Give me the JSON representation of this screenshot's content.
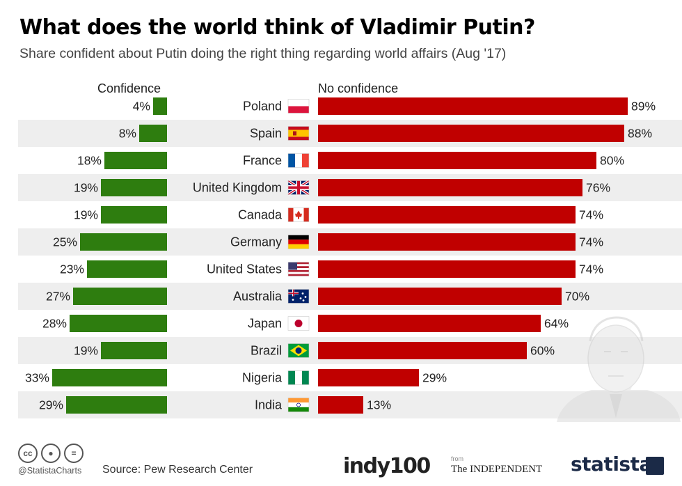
{
  "header": {
    "title": "What does the world think of Vladimir Putin?",
    "subtitle": "Share confident about Putin doing the right thing regarding world affairs (Aug '17)"
  },
  "colors": {
    "confidence": "#2e7d0f",
    "no_confidence": "#c00000",
    "stripe": "#eeeeee"
  },
  "chart_data": {
    "type": "bar",
    "title": "What does the world think of Vladimir Putin?",
    "subtitle": "Share confident about Putin doing the right thing regarding world affairs (Aug '17)",
    "categories": [
      "Poland",
      "Spain",
      "France",
      "United Kingdom",
      "Canada",
      "Germany",
      "United States",
      "Australia",
      "Japan",
      "Brazil",
      "Nigeria",
      "India"
    ],
    "series": [
      {
        "name": "Confidence",
        "values": [
          4,
          8,
          18,
          19,
          19,
          25,
          23,
          27,
          28,
          19,
          33,
          29
        ]
      },
      {
        "name": "No confidence",
        "values": [
          89,
          88,
          80,
          76,
          74,
          74,
          74,
          70,
          64,
          60,
          29,
          13
        ]
      }
    ],
    "value_suffix": "%",
    "flags": [
      "poland-flag-icon",
      "spain-flag-icon",
      "france-flag-icon",
      "uk-flag-icon",
      "canada-flag-icon",
      "germany-flag-icon",
      "usa-flag-icon",
      "australia-flag-icon",
      "japan-flag-icon",
      "brazil-flag-icon",
      "nigeria-flag-icon",
      "india-flag-icon"
    ],
    "grid": false,
    "legend": "top",
    "decoration": "putin-portrait-icon"
  },
  "footer": {
    "cc_icons": [
      "cc",
      "by",
      "nd"
    ],
    "handle": "@StatistaCharts",
    "source": "Source: Pew Research Center",
    "logo_indy_a": "indy",
    "logo_indy_b": "100",
    "from": "from",
    "logo_independent": "The INDEPENDENT",
    "logo_statista": "statista"
  }
}
